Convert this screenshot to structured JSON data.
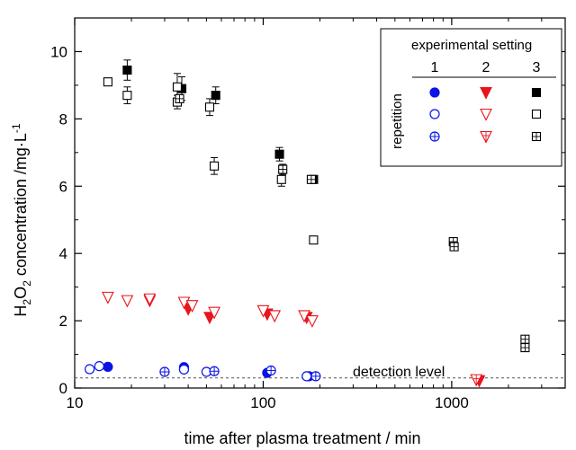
{
  "chart_data": {
    "type": "scatter",
    "title": "",
    "xlabel": "time after plasma treatment / min",
    "ylabel_main": "H",
    "ylabel_sub1": "2",
    "ylabel_o": "O",
    "ylabel_sub2": "2",
    "ylabel_rest": " concentration /mg·L",
    "ylabel_sup": "-1",
    "xscale": "log",
    "xlim": [
      10,
      4000
    ],
    "ylim": [
      0,
      11
    ],
    "xticks": [
      {
        "value": 10,
        "label": "10"
      },
      {
        "value": 100,
        "label": "100"
      },
      {
        "value": 1000,
        "label": "1000"
      }
    ],
    "yticks": [
      {
        "value": 0,
        "label": "0"
      },
      {
        "value": 2,
        "label": "2"
      },
      {
        "value": 4,
        "label": "4"
      },
      {
        "value": 6,
        "label": "6"
      },
      {
        "value": 8,
        "label": "8"
      },
      {
        "value": 10,
        "label": "10"
      }
    ],
    "grid": false,
    "detection_level": {
      "value": 0.3,
      "label": "detection level"
    },
    "legend": {
      "title": "experimental setting",
      "row_label": "repetition",
      "columns": [
        "1",
        "2",
        "3"
      ],
      "placement": "top-right"
    },
    "series": [
      {
        "setting": 1,
        "repetition": 1,
        "marker": "circle",
        "fill": "solid",
        "color": "#0a14e6",
        "points": [
          [
            15,
            0.63
          ],
          [
            38,
            0.62
          ],
          [
            105,
            0.45
          ],
          [
            175,
            0.35
          ]
        ]
      },
      {
        "setting": 1,
        "repetition": 2,
        "marker": "circle",
        "fill": "open",
        "color": "#0a14e6",
        "points": [
          [
            12,
            0.56
          ],
          [
            13.5,
            0.65
          ],
          [
            38,
            0.55
          ],
          [
            50,
            0.48
          ],
          [
            170,
            0.35
          ]
        ]
      },
      {
        "setting": 1,
        "repetition": 3,
        "marker": "circle",
        "fill": "cross",
        "color": "#0a14e6",
        "points": [
          [
            30,
            0.48
          ],
          [
            55,
            0.5
          ],
          [
            110,
            0.52
          ],
          [
            190,
            0.35
          ]
        ]
      },
      {
        "setting": 2,
        "repetition": 1,
        "marker": "triangle-down",
        "fill": "solid",
        "color": "#e8151b",
        "points": [
          [
            25,
            2.6
          ],
          [
            40,
            2.35
          ],
          [
            52,
            2.1
          ],
          [
            105,
            2.2
          ],
          [
            170,
            2.1
          ],
          [
            1400,
            0.22
          ]
        ]
      },
      {
        "setting": 2,
        "repetition": 2,
        "marker": "triangle-down",
        "fill": "open",
        "color": "#e8151b",
        "points": [
          [
            15,
            2.7
          ],
          [
            19,
            2.6
          ],
          [
            25,
            2.65
          ],
          [
            38,
            2.55
          ],
          [
            42,
            2.45
          ],
          [
            55,
            2.25
          ],
          [
            100,
            2.3
          ],
          [
            115,
            2.15
          ],
          [
            165,
            2.15
          ],
          [
            182,
            2.0
          ]
        ]
      },
      {
        "setting": 2,
        "repetition": 3,
        "marker": "triangle-down",
        "fill": "cross",
        "color": "#e8151b",
        "points": [
          [
            1350,
            0.25
          ]
        ]
      },
      {
        "setting": 3,
        "repetition": 1,
        "marker": "square",
        "fill": "solid",
        "color": "#000000",
        "points": [
          [
            19,
            9.45,
            0.3
          ],
          [
            37,
            8.9,
            0.35
          ],
          [
            56,
            8.7,
            0.25
          ],
          [
            122,
            6.95,
            0.2
          ],
          [
            185,
            6.2,
            0.1
          ]
        ]
      },
      {
        "setting": 3,
        "repetition": 2,
        "marker": "square",
        "fill": "open",
        "color": "#000000",
        "points": [
          [
            15,
            9.1,
            0
          ],
          [
            19,
            8.7,
            0.25
          ],
          [
            35,
            8.95,
            0.4
          ],
          [
            35,
            8.5,
            0.2
          ],
          [
            52,
            8.35,
            0.25
          ],
          [
            55,
            6.6,
            0.25
          ],
          [
            125,
            6.2,
            0.2
          ],
          [
            185,
            4.4,
            0
          ]
        ]
      },
      {
        "setting": 3,
        "repetition": 3,
        "marker": "square",
        "fill": "cross",
        "color": "#000000",
        "points": [
          [
            36,
            8.6,
            0
          ],
          [
            127,
            6.5,
            0.15
          ],
          [
            180,
            6.2,
            0.1
          ],
          [
            1020,
            4.35,
            0.1
          ],
          [
            1030,
            4.2,
            0.1
          ],
          [
            2450,
            1.45,
            0
          ],
          [
            2450,
            1.2,
            0
          ]
        ]
      }
    ]
  }
}
